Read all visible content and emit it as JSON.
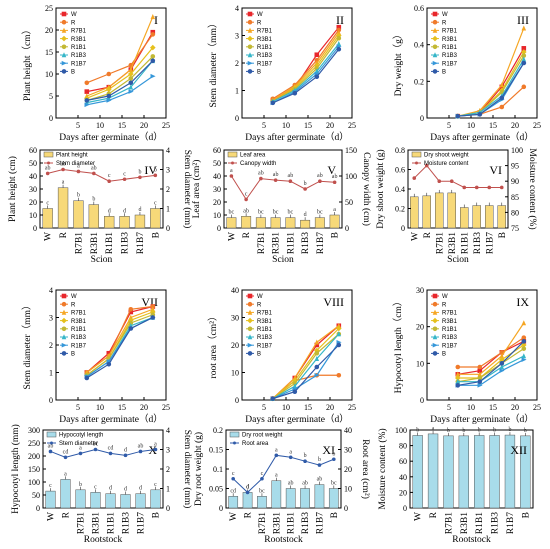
{
  "chart_data": [
    {
      "id": "I",
      "type": "line",
      "panel_label": "I",
      "xlabel": "Days after germinate（d）",
      "ylabel": "Plant height（cm）",
      "xlim": [
        0,
        25
      ],
      "ylim": [
        0,
        25
      ],
      "xticks": [
        5,
        10,
        15,
        20,
        25
      ],
      "yticks": [
        0,
        5,
        10,
        15,
        20,
        25
      ],
      "x": [
        7,
        12,
        17,
        22
      ],
      "legend": [
        "W",
        "R",
        "R7B1",
        "R3B1",
        "R1B1",
        "R1B3",
        "R1B7",
        "B"
      ],
      "series": [
        {
          "name": "W",
          "values": [
            6,
            7,
            11,
            19.5
          ]
        },
        {
          "name": "R",
          "values": [
            8,
            10,
            12,
            19
          ]
        },
        {
          "name": "R7B1",
          "values": [
            5,
            7,
            11,
            23
          ]
        },
        {
          "name": "R3B1",
          "values": [
            4.5,
            6.5,
            10,
            16
          ]
        },
        {
          "name": "R1B1",
          "values": [
            4,
            5.5,
            9,
            14
          ]
        },
        {
          "name": "R1B3",
          "values": [
            3.5,
            4.5,
            7,
            13
          ]
        },
        {
          "name": "R1B7",
          "values": [
            3,
            4,
            6,
            9.5
          ]
        },
        {
          "name": "B",
          "values": [
            4,
            5,
            8,
            13
          ]
        }
      ]
    },
    {
      "id": "II",
      "type": "line",
      "panel_label": "II",
      "xlabel": "Days after germinate（d）",
      "ylabel": "Stem diameter（mm）",
      "xlim": [
        0,
        25
      ],
      "ylim": [
        0,
        4
      ],
      "xticks": [
        5,
        10,
        15,
        20,
        25
      ],
      "yticks": [
        0,
        1,
        2,
        3,
        4
      ],
      "x": [
        7,
        12,
        17,
        22
      ],
      "legend": [
        "W",
        "R",
        "R7B1",
        "R3B1",
        "R1B1",
        "R1B3",
        "R1B7",
        "B"
      ],
      "series": [
        {
          "name": "W",
          "values": [
            0.65,
            1.1,
            2.3,
            3.3
          ]
        },
        {
          "name": "R",
          "values": [
            0.7,
            1.2,
            2.1,
            3.2
          ]
        },
        {
          "name": "R7B1",
          "values": [
            0.65,
            1.15,
            2.0,
            3.1
          ]
        },
        {
          "name": "R3B1",
          "values": [
            0.6,
            1.1,
            1.9,
            3.0
          ]
        },
        {
          "name": "R1B1",
          "values": [
            0.6,
            1.05,
            1.8,
            2.9
          ]
        },
        {
          "name": "R1B3",
          "values": [
            0.6,
            1.0,
            1.7,
            2.7
          ]
        },
        {
          "name": "R1B7",
          "values": [
            0.55,
            0.95,
            1.6,
            2.6
          ]
        },
        {
          "name": "B",
          "values": [
            0.55,
            0.9,
            1.5,
            2.5
          ]
        }
      ]
    },
    {
      "id": "III",
      "type": "line",
      "panel_label": "III",
      "xlabel": "Days after germinate（d）",
      "ylabel": "Dry weight（g）",
      "xlim": [
        0,
        25
      ],
      "ylim": [
        0,
        0.6
      ],
      "xticks": [
        5,
        10,
        15,
        20,
        25
      ],
      "yticks": [
        0,
        0.2,
        0.4,
        0.6
      ],
      "x": [
        7,
        12,
        17,
        22
      ],
      "legend": [
        "W",
        "R",
        "R7B1",
        "R3B1",
        "R1B1",
        "R1B3",
        "R1B7",
        "B"
      ],
      "series": [
        {
          "name": "W",
          "values": [
            0.01,
            0.03,
            0.17,
            0.38
          ]
        },
        {
          "name": "R",
          "values": [
            0.01,
            0.02,
            0.06,
            0.17
          ]
        },
        {
          "name": "R7B1",
          "values": [
            0.01,
            0.04,
            0.18,
            0.49
          ]
        },
        {
          "name": "R3B1",
          "values": [
            0.01,
            0.03,
            0.15,
            0.36
          ]
        },
        {
          "name": "R1B1",
          "values": [
            0.01,
            0.03,
            0.14,
            0.34
          ]
        },
        {
          "name": "R1B3",
          "values": [
            0.01,
            0.03,
            0.12,
            0.32
          ]
        },
        {
          "name": "R1B7",
          "values": [
            0.01,
            0.02,
            0.1,
            0.3
          ]
        },
        {
          "name": "B",
          "values": [
            0.01,
            0.02,
            0.11,
            0.3
          ]
        }
      ]
    },
    {
      "id": "IV",
      "type": "bar",
      "panel_label": "IV",
      "xlabel": "Scion",
      "ylabel": "Plant height (cm)",
      "y2label": "Stem diameter (mm)",
      "ylim": [
        0,
        60
      ],
      "y2lim": [
        0,
        4
      ],
      "yticks": [
        0,
        10,
        20,
        30,
        40,
        50,
        60
      ],
      "y2ticks": [
        0,
        1,
        2,
        3,
        4
      ],
      "categories": [
        "W",
        "R",
        "R7B1",
        "R3B1",
        "R1B1",
        "R1B3",
        "R1B7",
        "B"
      ],
      "legend": [
        "Plant height",
        "Stem diameter"
      ],
      "bars": [
        15,
        31,
        21,
        18,
        9,
        9,
        10,
        15
      ],
      "bar_letters": [
        "c",
        "a",
        "b",
        "b",
        "d",
        "d",
        "d",
        "c"
      ],
      "line": [
        2.8,
        3.0,
        2.9,
        2.8,
        2.4,
        2.5,
        2.6,
        2.7
      ],
      "line_letters": [
        "ab",
        "ab",
        "a",
        "ab",
        "c",
        "c",
        "b",
        "b"
      ]
    },
    {
      "id": "V",
      "type": "bar",
      "panel_label": "V",
      "xlabel": "Scion",
      "ylabel": "Leaf area (cm²)",
      "y2label": "Canopy width (cm)",
      "ylim": [
        0,
        60
      ],
      "y2lim": [
        0,
        150
      ],
      "yticks": [
        0,
        10,
        20,
        30,
        40,
        50,
        60
      ],
      "y2ticks": [
        0,
        50,
        100,
        150
      ],
      "categories": [
        "W",
        "R",
        "R7B1",
        "R3B1",
        "R1B1",
        "R1B3",
        "R1B7",
        "B"
      ],
      "legend": [
        "Leaf area",
        "Canopy width"
      ],
      "bars": [
        8,
        9,
        8,
        8,
        8,
        6,
        8,
        10
      ],
      "bar_letters": [
        "bc",
        "ab",
        "bc",
        "bc",
        "bc",
        "d",
        "bc",
        "a"
      ],
      "line": [
        100,
        55,
        95,
        92,
        90,
        75,
        90,
        88
      ],
      "line_letters": [
        "a",
        "c",
        "ab",
        "ab",
        "ab",
        "b",
        "ab",
        "ab"
      ]
    },
    {
      "id": "VI",
      "type": "bar",
      "panel_label": "VI",
      "xlabel": "Scion",
      "ylabel": "Dry shoot weight (g)",
      "y2label": "Moisture content (%)",
      "ylim": [
        0,
        0.8
      ],
      "y2lim": [
        75,
        100
      ],
      "yticks": [
        0,
        0.2,
        0.4,
        0.6,
        0.8
      ],
      "y2ticks": [
        75,
        80,
        85,
        90,
        95,
        100
      ],
      "categories": [
        "W",
        "R",
        "R7B1",
        "R3B1",
        "R1B1",
        "R1B3",
        "R1B7",
        "B"
      ],
      "legend": [
        "Dry shoot weight",
        "Moisture content"
      ],
      "bars": [
        0.32,
        0.33,
        0.36,
        0.36,
        0.21,
        0.23,
        0.23,
        0.23
      ],
      "line": [
        91,
        95,
        90,
        90,
        88,
        88,
        88,
        88
      ]
    },
    {
      "id": "VII",
      "type": "line",
      "panel_label": "VII",
      "xlabel": "Days after germinate（d）",
      "ylabel": "Stem diameter（mm）",
      "xlim": [
        0,
        25
      ],
      "ylim": [
        0,
        4
      ],
      "xticks": [
        5,
        10,
        15,
        20,
        25
      ],
      "yticks": [
        0,
        1,
        2,
        3,
        4
      ],
      "x": [
        7,
        12,
        17,
        22
      ],
      "legend": [
        "W",
        "R",
        "R7B1",
        "R3B1",
        "R1B1",
        "R1B3",
        "R1B7",
        "B"
      ],
      "series": [
        {
          "name": "W",
          "values": [
            1.0,
            1.7,
            3.2,
            3.4
          ]
        },
        {
          "name": "R",
          "values": [
            1.0,
            1.6,
            3.3,
            3.4
          ]
        },
        {
          "name": "R7B1",
          "values": [
            1.0,
            1.6,
            3.0,
            3.3
          ]
        },
        {
          "name": "R3B1",
          "values": [
            0.9,
            1.5,
            2.9,
            3.2
          ]
        },
        {
          "name": "R1B1",
          "values": [
            0.9,
            1.5,
            2.8,
            3.1
          ]
        },
        {
          "name": "R1B3",
          "values": [
            0.85,
            1.4,
            2.7,
            3.0
          ]
        },
        {
          "name": "R1B7",
          "values": [
            0.85,
            1.4,
            2.6,
            3.0
          ]
        },
        {
          "name": "B",
          "values": [
            0.8,
            1.3,
            2.6,
            3.0
          ]
        }
      ]
    },
    {
      "id": "VIII",
      "type": "line",
      "panel_label": "VIII",
      "xlabel": "Days after germinate（d）",
      "ylabel": "root area（cm²）",
      "xlim": [
        0,
        25
      ],
      "ylim": [
        0,
        40
      ],
      "xticks": [
        5,
        10,
        15,
        20,
        25
      ],
      "yticks": [
        0,
        10,
        20,
        30,
        40
      ],
      "x": [
        7,
        12,
        17,
        22
      ],
      "legend": [
        "W",
        "R",
        "R7B1",
        "R3B1",
        "R1B1",
        "R1B3",
        "R1B7",
        "B"
      ],
      "series": [
        {
          "name": "W",
          "values": [
            0.5,
            8,
            20,
            27
          ]
        },
        {
          "name": "R",
          "values": [
            0.5,
            7,
            9,
            9
          ]
        },
        {
          "name": "R7B1",
          "values": [
            0.5,
            8,
            21,
            27
          ]
        },
        {
          "name": "R3B1",
          "values": [
            0.5,
            7,
            18,
            26
          ]
        },
        {
          "name": "R1B1",
          "values": [
            0.5,
            6,
            17,
            24
          ]
        },
        {
          "name": "R1B3",
          "values": [
            0.5,
            5,
            15,
            24
          ]
        },
        {
          "name": "R1B7",
          "values": [
            0.5,
            4,
            9,
            21
          ]
        },
        {
          "name": "B",
          "values": [
            0.5,
            3,
            12,
            20
          ]
        }
      ]
    },
    {
      "id": "IX",
      "type": "line",
      "panel_label": "IX",
      "xlabel": "Days after germinate（d）",
      "ylabel": "Hypocotyl length（cm）",
      "xlim": [
        0,
        25
      ],
      "ylim": [
        0,
        30
      ],
      "xticks": [
        5,
        10,
        15,
        20,
        25
      ],
      "yticks": [
        0,
        10,
        20,
        30
      ],
      "x": [
        7,
        12,
        17,
        22
      ],
      "legend": [
        "W",
        "R",
        "R7B1",
        "R3B1",
        "R1B1",
        "R1B3",
        "R1B7",
        "B"
      ],
      "series": [
        {
          "name": "W",
          "values": [
            7,
            8,
            13,
            16
          ]
        },
        {
          "name": "R",
          "values": [
            9,
            9,
            13,
            17
          ]
        },
        {
          "name": "R7B1",
          "values": [
            7,
            7,
            12,
            21
          ]
        },
        {
          "name": "R3B1",
          "values": [
            6,
            6,
            11,
            15
          ]
        },
        {
          "name": "R1B1",
          "values": [
            5,
            6,
            10,
            14
          ]
        },
        {
          "name": "R1B3",
          "values": [
            5,
            5,
            9,
            12
          ]
        },
        {
          "name": "R1B7",
          "values": [
            4,
            4,
            8,
            11
          ]
        },
        {
          "name": "B",
          "values": [
            4,
            5,
            10,
            16
          ]
        }
      ]
    },
    {
      "id": "X",
      "type": "bar",
      "panel_label": "X",
      "xlabel": "Rootstock",
      "ylabel": "Hypocotyl length (mm)",
      "y2label": "Stem diameter (mm)",
      "ylim": [
        0,
        300
      ],
      "y2lim": [
        0,
        4
      ],
      "yticks": [
        0,
        50,
        100,
        150,
        200,
        250,
        300
      ],
      "y2ticks": [
        0,
        1,
        2,
        3,
        4
      ],
      "categories": [
        "W",
        "R",
        "R7B1",
        "R3B1",
        "R1B1",
        "R1B3",
        "R1B7",
        "B"
      ],
      "legend": [
        "Hypocotyl length",
        "Stem diameter"
      ],
      "bars": [
        65,
        110,
        70,
        60,
        55,
        52,
        55,
        70
      ],
      "bar_letters": [
        "c",
        "a",
        "b",
        "c",
        "d",
        "d",
        "d",
        "c"
      ],
      "line": [
        2.9,
        2.6,
        2.8,
        3.0,
        2.8,
        2.7,
        2.9,
        3.0
      ],
      "line_letters": [
        "ab",
        "cd",
        "a",
        "bc",
        "cd",
        "d",
        "ab",
        "a"
      ]
    },
    {
      "id": "XI",
      "type": "bar",
      "panel_label": "XI",
      "xlabel": "Rootstock",
      "ylabel": "Dry root weight (g)",
      "y2label": "Root area (cm²)",
      "ylim": [
        0,
        0.2
      ],
      "y2lim": [
        0,
        40
      ],
      "yticks": [
        0,
        0.05,
        0.1,
        0.15,
        0.2
      ],
      "y2ticks": [
        0,
        10,
        20,
        30,
        40
      ],
      "categories": [
        "W",
        "R",
        "R7B1",
        "R3B1",
        "R1B1",
        "R1B3",
        "R1B7",
        "B"
      ],
      "legend": [
        "Dry root weight",
        "Root area"
      ],
      "bars": [
        0.03,
        0.04,
        0.03,
        0.07,
        0.05,
        0.05,
        0.06,
        0.05
      ],
      "bar_letters": [
        "cd",
        "d",
        "bc",
        "a",
        "ab",
        "ab",
        "ab",
        "bc"
      ],
      "line": [
        15,
        8,
        15,
        27,
        26,
        24,
        22,
        25
      ],
      "line_letters": [
        "c",
        "d",
        "c",
        "a",
        "a",
        "b",
        "b",
        "b"
      ]
    },
    {
      "id": "XII",
      "type": "bar",
      "panel_label": "XII",
      "xlabel": "Rootstock",
      "ylabel": "Moisture content (%)",
      "ylim": [
        0,
        100
      ],
      "yticks": [
        0,
        20,
        40,
        60,
        80,
        100
      ],
      "categories": [
        "W",
        "R",
        "R7B1",
        "R3B1",
        "R1B1",
        "R1B3",
        "R1B7",
        "B"
      ],
      "bars": [
        93,
        95,
        92.5,
        92.5,
        93,
        93,
        93.5,
        92.5
      ],
      "bar_letters": [
        "b",
        "a",
        "b",
        "b",
        "b",
        "b",
        "b",
        "b"
      ]
    }
  ],
  "colors": {
    "W": "#e8262b",
    "R": "#f07a2a",
    "R7B1": "#f5a623",
    "R3B1": "#e6c01c",
    "R1B1": "#c2b834",
    "R1B3": "#35b6c8",
    "R1B7": "#3597d9",
    "B": "#2f5aa8",
    "bar_yellow": "#f7d979",
    "bar_blue": "#a8dcea",
    "line_red": "#c0504d",
    "line_blue": "#2f5aa8"
  }
}
